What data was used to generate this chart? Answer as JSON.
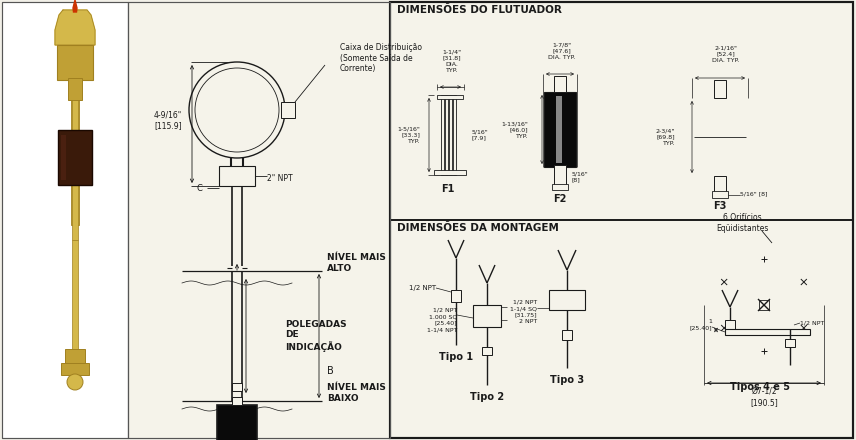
{
  "bg_color": "#f2f0e8",
  "panel_bg": "#f5f3ea",
  "line_color": "#1a1a1a",
  "text_color": "#1a1a1a",
  "fill_black": "#0a0a0a",
  "photo_bg": "#ffffff",
  "title_flutuador": "DIMENSÕES DO FLUTUADOR",
  "title_montagem": "DIMENSÕES DA MONTAGEM",
  "label_caixa": "Caixa de Distribuição\n(Somente Saída de\nCorrente)",
  "label_dim1": "4-9/16\"\n[115.9]",
  "label_2npt": "2\" NPT",
  "label_c": "C",
  "label_nivel_alto": "NÍVEL MAIS\nALTO",
  "label_polegadas": "POLEGADAS\nDE\nINDICAÇÃO",
  "label_b": "B",
  "label_nivel_baixo": "NÍVEL MAIS\nBAIXO",
  "brass_light": "#d4b84a",
  "brass_mid": "#c0a035",
  "brass_dark": "#a08020",
  "brown_dark": "#3a1a0a"
}
